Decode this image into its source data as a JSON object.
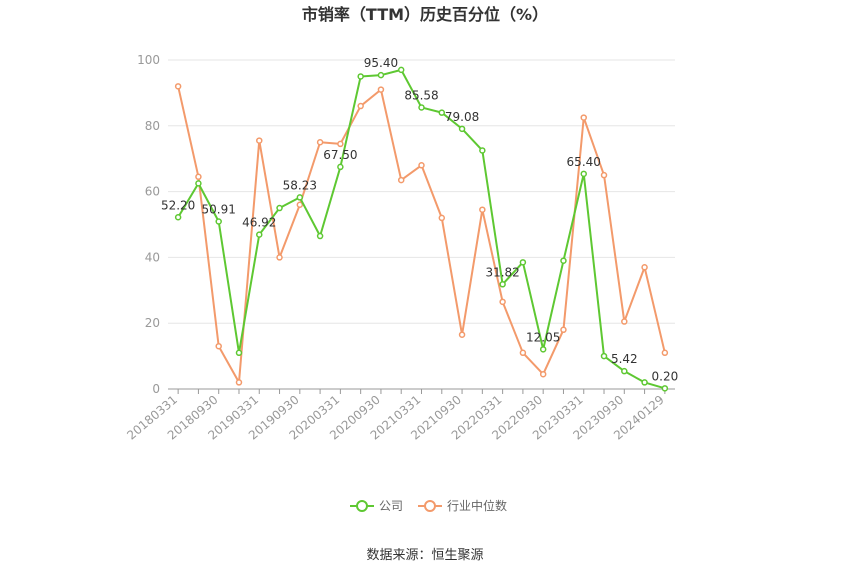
{
  "chart_data": {
    "type": "line",
    "title": "市销率（TTM）历史百分位（%）",
    "ylim": [
      0,
      100
    ],
    "yticks": [
      0,
      20,
      40,
      60,
      80,
      100
    ],
    "grid": true,
    "legend_placement": "bottom-center",
    "x": [
      "20180331",
      "20180630",
      "20180930",
      "20181231",
      "20190331",
      "20190630",
      "20190930",
      "20191231",
      "20200331",
      "20200630",
      "20200930",
      "20201231",
      "20210331",
      "20210630",
      "20210930",
      "20211231",
      "20220331",
      "20220630",
      "20220930",
      "20221231",
      "20230331",
      "20230630",
      "20230930",
      "20231231",
      "20240129"
    ],
    "x_tick_labels": [
      "20180331",
      "20180930",
      "20190331",
      "20190930",
      "20200331",
      "20200930",
      "20210331",
      "20210930",
      "20220331",
      "20220930",
      "20230331",
      "20230930",
      "20240129"
    ],
    "series": [
      {
        "name": "公司",
        "color": "#5ec832",
        "values": [
          52.2,
          62.5,
          50.91,
          11.0,
          46.92,
          55.0,
          58.23,
          46.5,
          67.5,
          95.0,
          95.4,
          97.0,
          85.58,
          84.0,
          79.08,
          72.5,
          31.82,
          38.5,
          12.05,
          39.0,
          65.4,
          10.0,
          5.42,
          2.0,
          0.2
        ],
        "labels": {
          "0": "52.20",
          "2": "50.91",
          "4": "46.92",
          "6": "58.23",
          "8": "67.50",
          "10": "95.40",
          "12": "85.58",
          "14": "79.08",
          "16": "31.82",
          "18": "12.05",
          "20": "65.40",
          "22": "5.42",
          "24": "0.20"
        }
      },
      {
        "name": "行业中位数",
        "color": "#f39a6b",
        "values": [
          92.0,
          64.5,
          13.0,
          2.0,
          75.5,
          40.0,
          56.0,
          75.0,
          74.5,
          86.0,
          91.0,
          63.5,
          68.0,
          52.0,
          16.5,
          54.5,
          26.5,
          11.0,
          4.5,
          18.0,
          82.5,
          65.0,
          20.5,
          37.0,
          11.0
        ]
      }
    ]
  },
  "source_text": "数据来源：恒生聚源"
}
